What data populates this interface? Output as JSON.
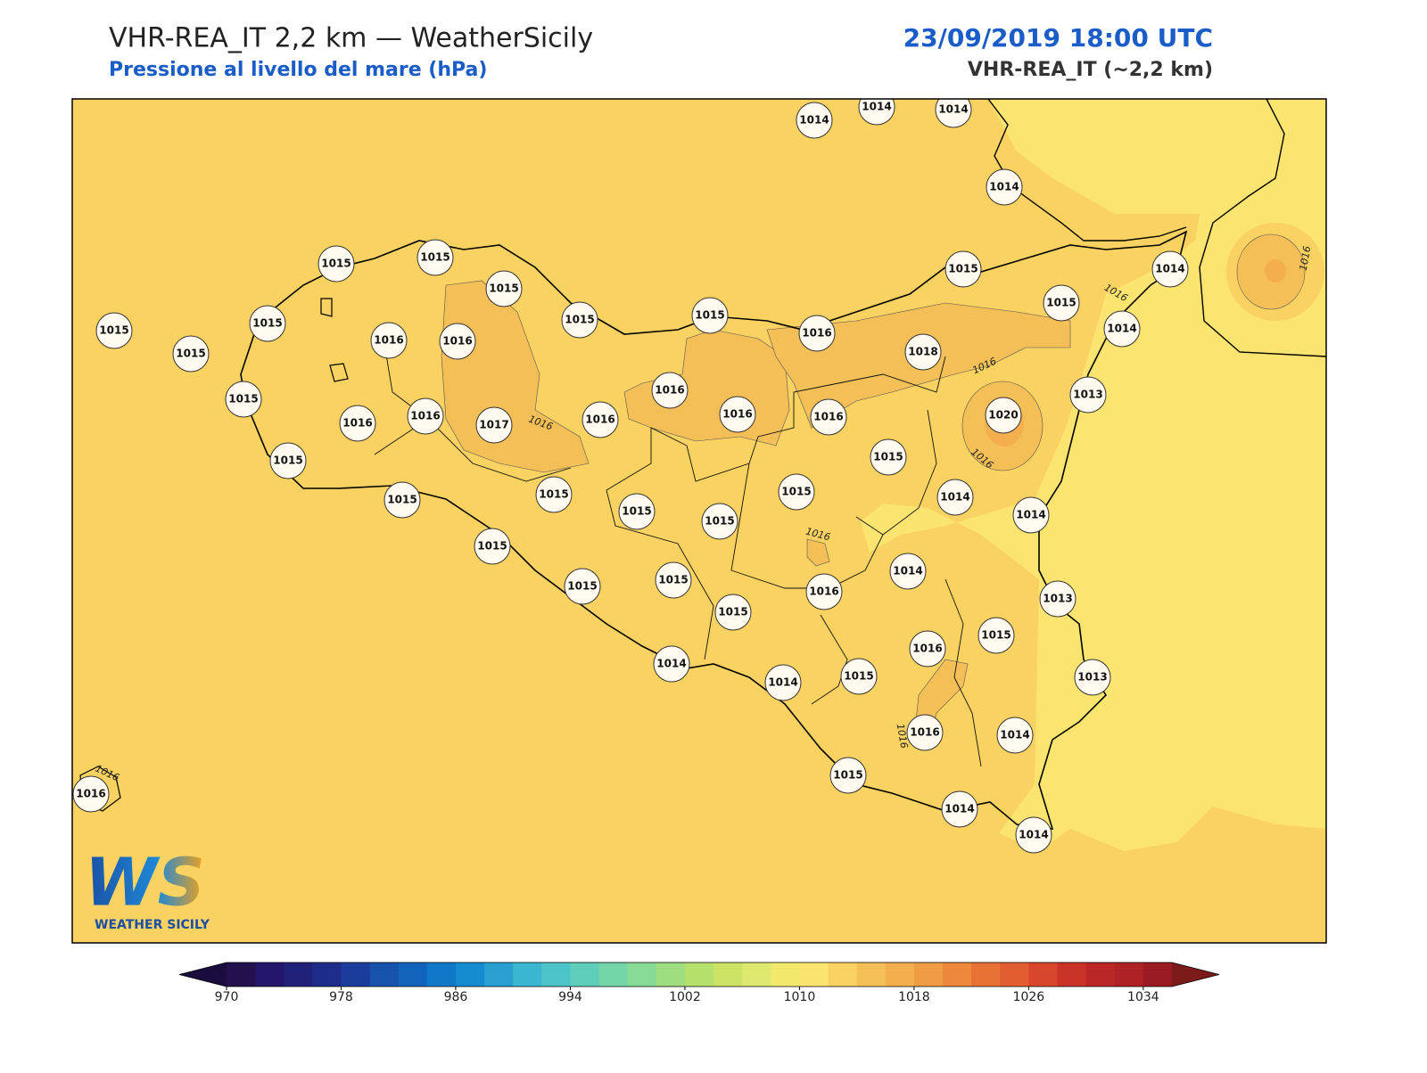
{
  "header": {
    "title": "VHR-REA_IT 2,2 km — WeatherSicily",
    "subtitle": "Pressione al livello del mare (hPa)",
    "datetime": "23/09/2019 18:00 UTC",
    "model": "VHR-REA_IT (~2,2 km)"
  },
  "map": {
    "stations": [
      "1014",
      "1014",
      "1014",
      "1014",
      "1015",
      "1015",
      "1015",
      "1015",
      "1015",
      "1015",
      "1014",
      "1015",
      "1014",
      "1015",
      "1015",
      "1016",
      "1016",
      "1016",
      "1018",
      "1015",
      "1015",
      "1016",
      "1013",
      "1016",
      "1016",
      "1017",
      "1016",
      "1016",
      "1016",
      "1020",
      "1015",
      "1015",
      "1015",
      "1015",
      "1015",
      "1014",
      "1014",
      "1015",
      "1015",
      "1015",
      "1014",
      "1015",
      "1015",
      "1016",
      "1013",
      "1015",
      "1015",
      "1016",
      "1014",
      "1014",
      "1015",
      "1013",
      "1016",
      "1014",
      "1016",
      "1015",
      "1014",
      "1014"
    ],
    "contour_labels": [
      "1016",
      "1016",
      "1016",
      "1016",
      "1016",
      "1016",
      "1016",
      "1016"
    ]
  },
  "colorbar": {
    "range": [
      970,
      1036
    ],
    "ticks": [
      970,
      978,
      986,
      994,
      1002,
      1010,
      1018,
      1026,
      1034
    ],
    "colors": [
      "#23114f",
      "#24166a",
      "#22217a",
      "#1f2d8a",
      "#1b3c9a",
      "#1752ad",
      "#1264bb",
      "#0f78c8",
      "#168cd0",
      "#2aa0d2",
      "#3ab6d0",
      "#4cc4c8",
      "#5ecebb",
      "#72d6a9",
      "#86da95",
      "#9edd80",
      "#b5e06c",
      "#cbe264",
      "#dde86f",
      "#f2e86c",
      "#fbe46f",
      "#f9d262",
      "#f5bf57",
      "#f3ae4e",
      "#f09c45",
      "#ed883d",
      "#e87236",
      "#e25e30",
      "#d8472c",
      "#ca3428",
      "#bb2726",
      "#ae2124",
      "#9b1b22"
    ],
    "under_color": "#1a0c3d",
    "over_color": "#7d1a1a"
  },
  "logo": {
    "mark": "WS",
    "name": "WEATHER SICILY"
  }
}
